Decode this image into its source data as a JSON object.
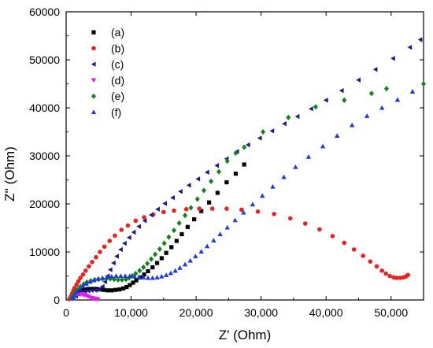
{
  "chart_data": {
    "type": "scatter",
    "xlabel": "Z' (Ohm)",
    "ylabel": "Z'' (Ohm)",
    "xlim": [
      0,
      55000
    ],
    "ylim": [
      0,
      60000
    ],
    "xticks": [
      0,
      10000,
      20000,
      30000,
      40000,
      50000
    ],
    "xtick_labels": [
      "0",
      "10,000",
      "20,000",
      "30,000",
      "40,000",
      "50,000"
    ],
    "yticks": [
      0,
      10000,
      20000,
      30000,
      40000,
      50000,
      60000
    ],
    "ytick_labels": [
      "0",
      "10000",
      "20000",
      "30000",
      "40000",
      "50000",
      "60000"
    ],
    "grid": false,
    "legend_position": "top-left",
    "series": [
      {
        "name": "(a)",
        "marker": "square",
        "color": "#000000",
        "points": [
          [
            1000,
            500
          ],
          [
            1300,
            1200
          ],
          [
            1700,
            1700
          ],
          [
            2200,
            2000
          ],
          [
            2800,
            2200
          ],
          [
            3400,
            2300
          ],
          [
            4000,
            2300
          ],
          [
            4600,
            2300
          ],
          [
            5200,
            2200
          ],
          [
            5800,
            2100
          ],
          [
            6400,
            2000
          ],
          [
            7000,
            2000
          ],
          [
            7600,
            2100
          ],
          [
            8200,
            2200
          ],
          [
            8800,
            2400
          ],
          [
            9300,
            2700
          ],
          [
            9800,
            3100
          ],
          [
            10300,
            3600
          ],
          [
            10800,
            4100
          ],
          [
            11400,
            4700
          ],
          [
            12000,
            5300
          ],
          [
            12600,
            6000
          ],
          [
            13300,
            6800
          ],
          [
            14000,
            7700
          ],
          [
            14700,
            8700
          ],
          [
            15400,
            9800
          ],
          [
            16200,
            11000
          ],
          [
            17000,
            12300
          ],
          [
            17800,
            13700
          ],
          [
            18700,
            15200
          ],
          [
            19700,
            16800
          ],
          [
            20800,
            18500
          ],
          [
            22000,
            20300
          ],
          [
            23300,
            22300
          ],
          [
            24700,
            24500
          ],
          [
            26100,
            26300
          ],
          [
            27400,
            28200
          ]
        ]
      },
      {
        "name": "(b)",
        "marker": "circle",
        "color": "#e8231f",
        "points": [
          [
            500,
            200
          ],
          [
            700,
            700
          ],
          [
            900,
            1300
          ],
          [
            1100,
            1900
          ],
          [
            1300,
            2500
          ],
          [
            1600,
            3200
          ],
          [
            1900,
            3900
          ],
          [
            2200,
            4600
          ],
          [
            2600,
            5300
          ],
          [
            3000,
            6100
          ],
          [
            3500,
            7000
          ],
          [
            4000,
            7900
          ],
          [
            4600,
            8900
          ],
          [
            5200,
            10000
          ],
          [
            5900,
            11100
          ],
          [
            6700,
            12300
          ],
          [
            7500,
            13400
          ],
          [
            8500,
            14600
          ],
          [
            9500,
            15500
          ],
          [
            10700,
            16500
          ],
          [
            12000,
            17200
          ],
          [
            13400,
            17800
          ],
          [
            15000,
            18300
          ],
          [
            16600,
            18600
          ],
          [
            18500,
            18900
          ],
          [
            20500,
            19000
          ],
          [
            22500,
            19000
          ],
          [
            24700,
            19000
          ],
          [
            27000,
            18800
          ],
          [
            29500,
            18400
          ],
          [
            32000,
            17900
          ],
          [
            34500,
            17000
          ],
          [
            36800,
            15900
          ],
          [
            39000,
            14700
          ],
          [
            41000,
            13300
          ],
          [
            42800,
            11900
          ],
          [
            44300,
            10500
          ],
          [
            45700,
            9200
          ],
          [
            46800,
            8000
          ],
          [
            47800,
            7000
          ],
          [
            48600,
            6100
          ],
          [
            49200,
            5500
          ],
          [
            49800,
            5000
          ],
          [
            50400,
            4700
          ],
          [
            50900,
            4600
          ],
          [
            51400,
            4600
          ],
          [
            51900,
            4700
          ],
          [
            52300,
            4900
          ],
          [
            52600,
            5200
          ]
        ]
      },
      {
        "name": "(c)",
        "marker": "triangle-left",
        "color": "#1c1b8e",
        "points": [
          [
            1100,
            400
          ],
          [
            1500,
            800
          ],
          [
            1900,
            1200
          ],
          [
            2400,
            1500
          ],
          [
            2900,
            1800
          ],
          [
            3400,
            1900
          ],
          [
            3900,
            2000
          ],
          [
            4500,
            2000
          ],
          [
            5100,
            2200
          ],
          [
            5600,
            2800
          ],
          [
            6000,
            3800
          ],
          [
            6400,
            5000
          ],
          [
            6800,
            6300
          ],
          [
            7300,
            7700
          ],
          [
            7800,
            9100
          ],
          [
            8400,
            10500
          ],
          [
            9000,
            11800
          ],
          [
            9700,
            13000
          ],
          [
            10400,
            14100
          ],
          [
            11200,
            15300
          ],
          [
            12100,
            16500
          ],
          [
            13100,
            17700
          ],
          [
            14100,
            18900
          ],
          [
            15200,
            20100
          ],
          [
            16400,
            21300
          ],
          [
            17600,
            22600
          ],
          [
            18900,
            23900
          ],
          [
            20300,
            25200
          ],
          [
            21700,
            26600
          ],
          [
            23200,
            28000
          ],
          [
            24700,
            29400
          ],
          [
            26300,
            30900
          ],
          [
            28000,
            32300
          ],
          [
            29800,
            33700
          ],
          [
            31700,
            35200
          ],
          [
            33600,
            36700
          ],
          [
            35600,
            38200
          ],
          [
            37700,
            39800
          ],
          [
            40000,
            41600
          ],
          [
            42400,
            43600
          ],
          [
            45000,
            45800
          ],
          [
            47600,
            48000
          ],
          [
            50300,
            50300
          ],
          [
            52900,
            52600
          ],
          [
            54500,
            54200
          ]
        ]
      },
      {
        "name": "(d)",
        "marker": "triangle-down",
        "color": "#e020e8",
        "points": [
          [
            800,
            300
          ],
          [
            1000,
            600
          ],
          [
            1300,
            900
          ],
          [
            1600,
            1100
          ],
          [
            1900,
            1200
          ],
          [
            2200,
            1200
          ],
          [
            2500,
            1100
          ],
          [
            2800,
            1000
          ],
          [
            3100,
            900
          ],
          [
            3400,
            700
          ],
          [
            3700,
            500
          ],
          [
            4000,
            400
          ],
          [
            4300,
            300
          ],
          [
            4600,
            200
          ],
          [
            4900,
            150
          ]
        ]
      },
      {
        "name": "(e)",
        "marker": "diamond",
        "color": "#14821a",
        "points": [
          [
            800,
            400
          ],
          [
            1100,
            1000
          ],
          [
            1400,
            1600
          ],
          [
            1800,
            2200
          ],
          [
            2200,
            2800
          ],
          [
            2700,
            3300
          ],
          [
            3200,
            3700
          ],
          [
            3800,
            4000
          ],
          [
            4400,
            4200
          ],
          [
            5000,
            4300
          ],
          [
            5600,
            4400
          ],
          [
            6200,
            4400
          ],
          [
            6800,
            4400
          ],
          [
            7400,
            4300
          ],
          [
            8000,
            4200
          ],
          [
            8600,
            4200
          ],
          [
            9200,
            4300
          ],
          [
            9700,
            4600
          ],
          [
            10200,
            5000
          ],
          [
            10700,
            5500
          ],
          [
            11300,
            6100
          ],
          [
            11900,
            6800
          ],
          [
            12500,
            7600
          ],
          [
            13100,
            8500
          ],
          [
            13700,
            9500
          ],
          [
            14400,
            10600
          ],
          [
            15100,
            11800
          ],
          [
            15800,
            13100
          ],
          [
            16600,
            14500
          ],
          [
            17400,
            16000
          ],
          [
            18300,
            17600
          ],
          [
            19200,
            19200
          ],
          [
            20200,
            21000
          ],
          [
            21200,
            22800
          ],
          [
            22300,
            24700
          ],
          [
            23500,
            26700
          ],
          [
            24800,
            28900
          ],
          [
            26100,
            30600
          ],
          [
            27400,
            31800
          ],
          [
            30300,
            35000
          ],
          [
            34200,
            38000
          ],
          [
            38400,
            40200
          ],
          [
            42800,
            41600
          ],
          [
            47000,
            43000
          ],
          [
            49300,
            44000
          ],
          [
            55000,
            45000
          ]
        ]
      },
      {
        "name": "(f)",
        "marker": "triangle-up",
        "color": "#1f38e6",
        "points": [
          [
            1000,
            400
          ],
          [
            1300,
            1000
          ],
          [
            1700,
            1700
          ],
          [
            2100,
            2300
          ],
          [
            2600,
            2900
          ],
          [
            3100,
            3400
          ],
          [
            3700,
            3800
          ],
          [
            4300,
            4100
          ],
          [
            4900,
            4400
          ],
          [
            5600,
            4600
          ],
          [
            6300,
            4800
          ],
          [
            7000,
            4900
          ],
          [
            7700,
            5000
          ],
          [
            8400,
            5000
          ],
          [
            9100,
            5000
          ],
          [
            9800,
            5000
          ],
          [
            10500,
            4900
          ],
          [
            11200,
            4800
          ],
          [
            11900,
            4700
          ],
          [
            12600,
            4600
          ],
          [
            13300,
            4600
          ],
          [
            14000,
            4700
          ],
          [
            14700,
            4900
          ],
          [
            15400,
            5200
          ],
          [
            16100,
            5600
          ],
          [
            16800,
            6100
          ],
          [
            17500,
            6700
          ],
          [
            18300,
            7400
          ],
          [
            19100,
            8200
          ],
          [
            19900,
            9100
          ],
          [
            20800,
            10100
          ],
          [
            21700,
            11200
          ],
          [
            22700,
            12400
          ],
          [
            23700,
            13700
          ],
          [
            24800,
            15100
          ],
          [
            26000,
            16600
          ],
          [
            27300,
            18200
          ],
          [
            28700,
            19900
          ],
          [
            30200,
            21700
          ],
          [
            31800,
            23600
          ],
          [
            33500,
            25600
          ],
          [
            35300,
            27700
          ],
          [
            37300,
            29800
          ],
          [
            39500,
            32000
          ],
          [
            41700,
            34200
          ],
          [
            44000,
            36400
          ],
          [
            46300,
            38300
          ],
          [
            48600,
            40000
          ],
          [
            51000,
            41700
          ],
          [
            53300,
            43400
          ]
        ]
      }
    ]
  }
}
